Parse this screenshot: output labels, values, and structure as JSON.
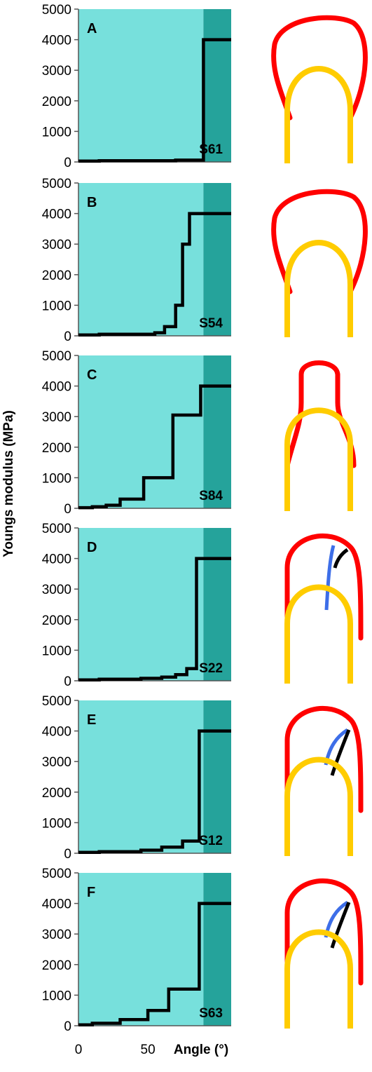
{
  "chart_data": {
    "type": "line",
    "ylabel": "Youngs modulus (MPa)",
    "xlabel": "Angle (°)",
    "xticks": [
      0,
      50
    ],
    "yticks": [
      0,
      1000,
      2000,
      3000,
      4000,
      5000
    ],
    "ylim": [
      0,
      5000
    ],
    "xlim": [
      0,
      110
    ],
    "region_boundary_x": 90,
    "region_colors": {
      "left": "#77e0dc",
      "right": "#25a39b"
    },
    "line_color": "#000000",
    "schematic_colors": {
      "red": "#ff0000",
      "yellow": "#ffcc00",
      "blue": "#3d6ee8",
      "black": "#000000"
    },
    "panels": [
      {
        "label": "A",
        "sample": "S61",
        "x": [
          0,
          15,
          15,
          70,
          70,
          90,
          90,
          110
        ],
        "y": [
          30,
          30,
          40,
          40,
          60,
          60,
          4000,
          4000
        ]
      },
      {
        "label": "B",
        "sample": "S54",
        "x": [
          0,
          15,
          15,
          55,
          55,
          62,
          62,
          70,
          70,
          75,
          75,
          80,
          80,
          85,
          85,
          110
        ],
        "y": [
          30,
          30,
          50,
          50,
          100,
          100,
          300,
          300,
          1000,
          1000,
          3000,
          3000,
          4000,
          4000,
          4000,
          4000
        ]
      },
      {
        "label": "C",
        "sample": "S84",
        "x": [
          0,
          10,
          10,
          20,
          20,
          30,
          30,
          47,
          47,
          68,
          68,
          88,
          88,
          110
        ],
        "y": [
          20,
          20,
          50,
          50,
          100,
          100,
          300,
          300,
          1000,
          1000,
          3050,
          3050,
          4000,
          4000
        ]
      },
      {
        "label": "D",
        "sample": "S22",
        "x": [
          0,
          15,
          15,
          45,
          45,
          60,
          60,
          70,
          70,
          78,
          78,
          85,
          85,
          110
        ],
        "y": [
          30,
          30,
          50,
          50,
          80,
          80,
          120,
          120,
          200,
          200,
          400,
          400,
          4000,
          4000
        ]
      },
      {
        "label": "E",
        "sample": "S12",
        "x": [
          0,
          15,
          15,
          45,
          45,
          60,
          60,
          75,
          75,
          87,
          87,
          110
        ],
        "y": [
          30,
          30,
          50,
          50,
          100,
          100,
          200,
          200,
          400,
          400,
          4000,
          4000
        ]
      },
      {
        "label": "F",
        "sample": "S63",
        "x": [
          0,
          10,
          10,
          30,
          30,
          50,
          50,
          65,
          65,
          87,
          87,
          110
        ],
        "y": [
          30,
          30,
          80,
          80,
          200,
          200,
          500,
          500,
          1200,
          1200,
          4000,
          4000
        ]
      }
    ]
  }
}
